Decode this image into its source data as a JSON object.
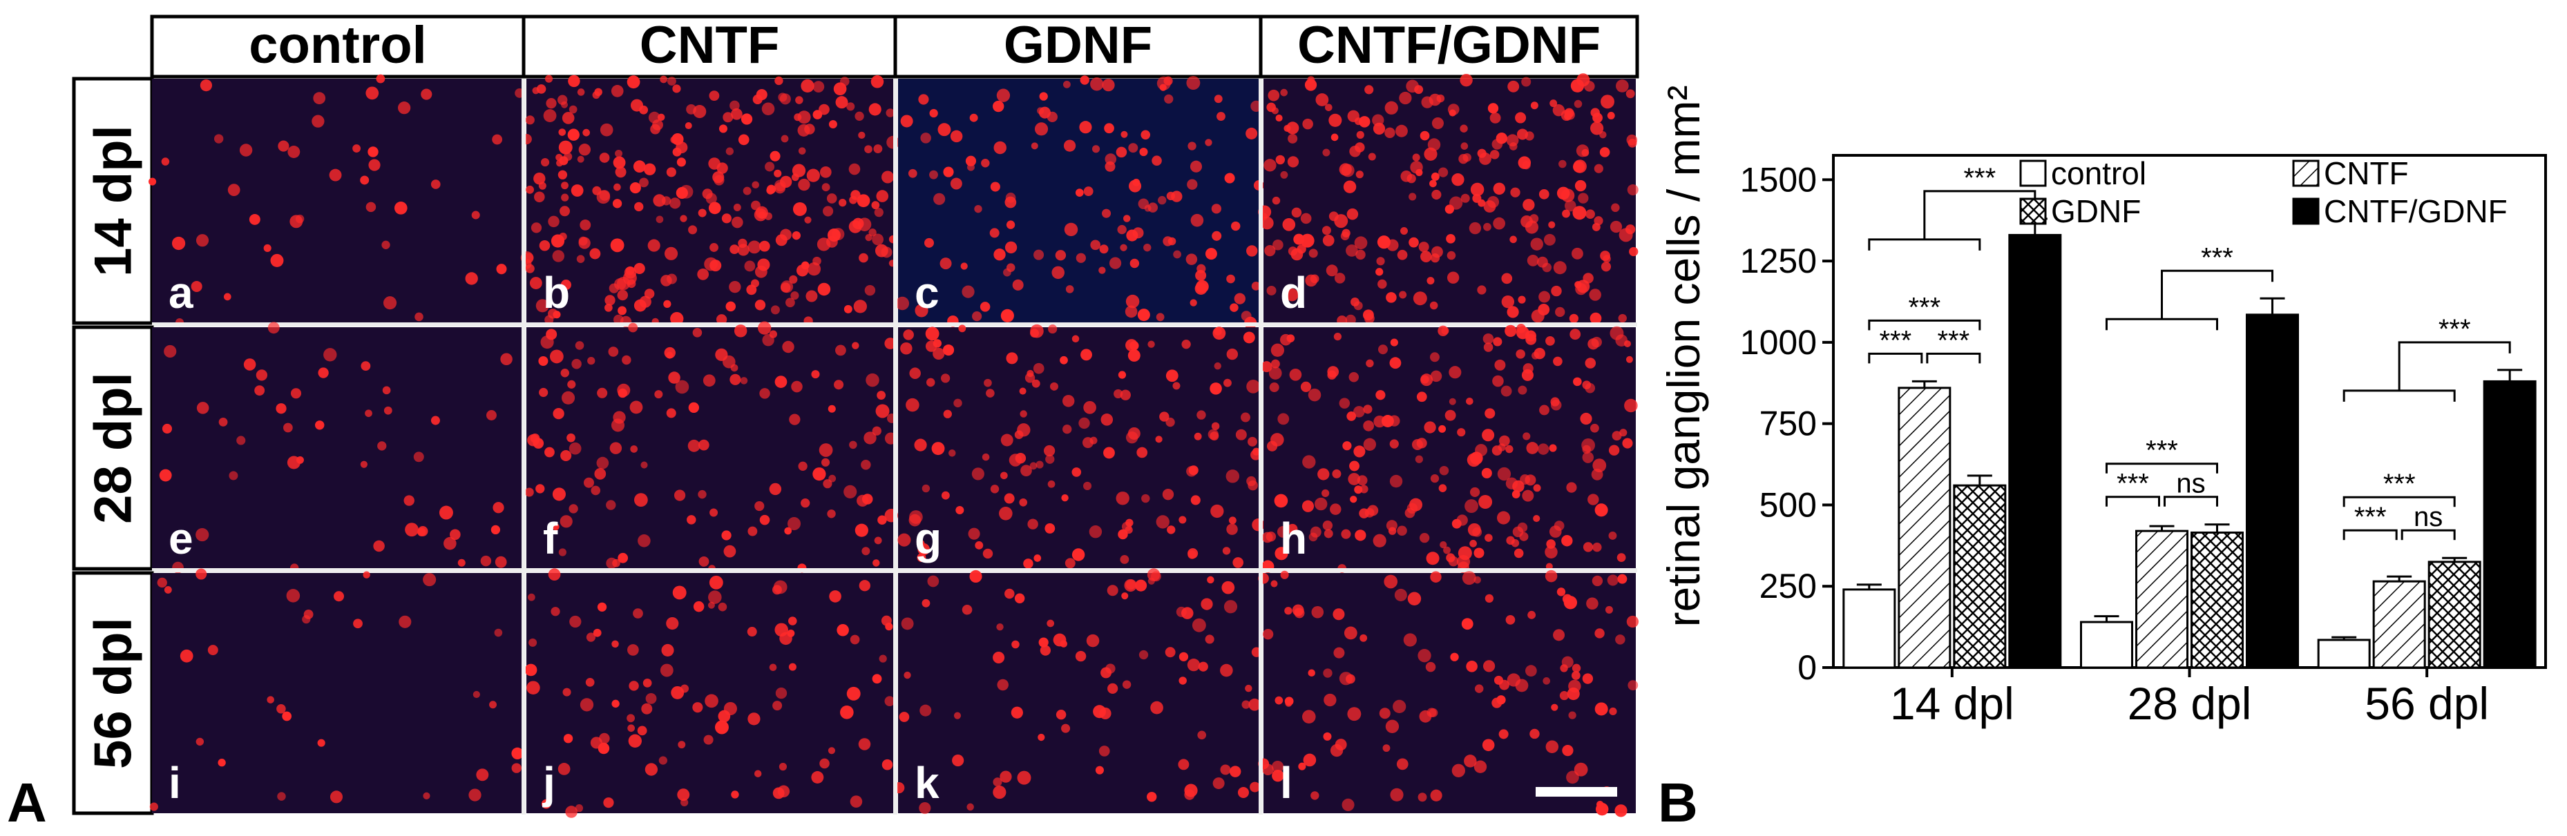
{
  "panel_a": {
    "label": "A",
    "columns": [
      "control",
      "CNTF",
      "GDNF",
      "CNTF/GDNF"
    ],
    "rows": [
      "14 dpl",
      "28 dpl",
      "56 dpl"
    ],
    "cells": [
      [
        "a",
        "b",
        "c",
        "d"
      ],
      [
        "e",
        "f",
        "g",
        "h"
      ],
      [
        "i",
        "j",
        "k",
        "l"
      ]
    ]
  },
  "chart_data": {
    "type": "bar",
    "panel_label": "B",
    "y_label": "retinal ganglion cells / mm²",
    "categories": [
      "14 dpl",
      "28 dpl",
      "56 dpl"
    ],
    "series": [
      {
        "name": "control",
        "color": "#ffffff",
        "pattern": "none",
        "values": [
          240,
          140,
          85
        ],
        "errors": [
          15,
          18,
          8
        ]
      },
      {
        "name": "CNTF",
        "color": "#ffffff",
        "pattern": "diagonal",
        "values": [
          860,
          420,
          265
        ],
        "errors": [
          20,
          15,
          15
        ]
      },
      {
        "name": "GDNF",
        "color": "#ffffff",
        "pattern": "crosshatch",
        "values": [
          560,
          415,
          325
        ],
        "errors": [
          30,
          25,
          12
        ]
      },
      {
        "name": "CNTF/GDNF",
        "color": "#000000",
        "pattern": "none",
        "values": [
          1330,
          1085,
          880
        ],
        "errors": [
          50,
          50,
          35
        ]
      }
    ],
    "significance": [
      [
        "***",
        "***",
        "***",
        "***"
      ],
      [
        "***",
        "***",
        "ns",
        "***"
      ],
      [
        "***",
        "***",
        "ns",
        "***"
      ]
    ],
    "ylim": [
      0,
      1575
    ],
    "yticks": [
      0,
      250,
      500,
      750,
      1000,
      1250,
      1500
    ],
    "legend": "upper right"
  }
}
